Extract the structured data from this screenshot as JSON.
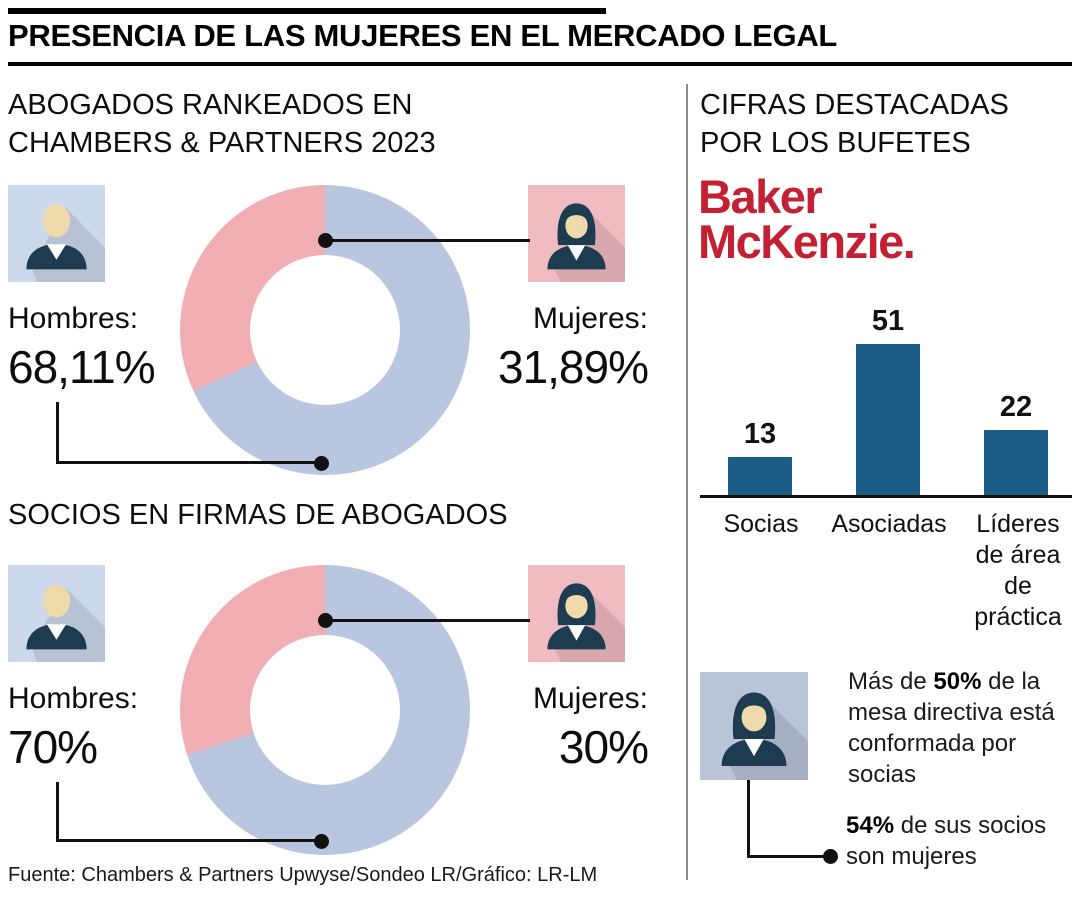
{
  "palette": {
    "men-blue": "#b9c6df",
    "women-pink": "#f1aeb3",
    "men-icon-bg": "#ccd9ec",
    "women-icon-bg": "#f0bcc1",
    "fact-icon-bg": "#b9c4d8",
    "bar-blue": "#1c5d86",
    "brand-red": "#c42033",
    "avatar-navy": "#1d3c50",
    "avatar-skin": "#eedaab",
    "line-black": "#111111"
  },
  "header": {
    "title": "PRESENCIA DE LAS MUJERES EN EL MERCADO LEGAL"
  },
  "left": {
    "section1": {
      "title_lines": [
        "ABOGADOS RANKEADOS EN",
        "CHAMBERS & PARTNERS 2023"
      ],
      "men_label": "Hombres:",
      "men_value": "68,11%",
      "women_label": "Mujeres:",
      "women_value": "31,89%"
    },
    "section2": {
      "title": "SOCIOS EN FIRMAS DE ABOGADOS",
      "men_label": "Hombres:",
      "men_value": "70%",
      "women_label": "Mujeres:",
      "women_value": "30%"
    },
    "source": "Fuente: Chambers & Partners Upwyse/Sondeo LR/Gráfico: LR-LM"
  },
  "right": {
    "title_lines": [
      "CIFRAS DESTACADAS",
      "POR LOS BUFETES"
    ],
    "brand": {
      "line1": "Baker",
      "line2": "McKenzie."
    },
    "facts": [
      {
        "prefix": "Más de ",
        "bold": "50%",
        "suffix": " de la mesa directiva está conformada por socias"
      },
      {
        "prefix": "",
        "bold": "54%",
        "suffix": " de sus socios son mujeres"
      }
    ]
  },
  "chart_data": [
    {
      "type": "pie",
      "title": "Abogados rankeados en Chambers & Partners 2023",
      "labels": [
        "Hombres",
        "Mujeres"
      ],
      "values": [
        68.11,
        31.89
      ],
      "colors": [
        "#b9c6df",
        "#f1aeb3"
      ],
      "donut": true
    },
    {
      "type": "pie",
      "title": "Socios en firmas de abogados",
      "labels": [
        "Hombres",
        "Mujeres"
      ],
      "values": [
        70,
        30
      ],
      "colors": [
        "#b9c6df",
        "#f1aeb3"
      ],
      "donut": true
    },
    {
      "type": "bar",
      "title": "Cifras destacadas por los bufetes — Baker McKenzie",
      "categories": [
        "Socias",
        "Asociadas",
        "Líderes de área de práctica"
      ],
      "values": [
        13,
        51,
        22
      ],
      "bar_color": "#1c5d86",
      "ylim": [
        0,
        51
      ],
      "grid": false,
      "legend": false
    }
  ]
}
